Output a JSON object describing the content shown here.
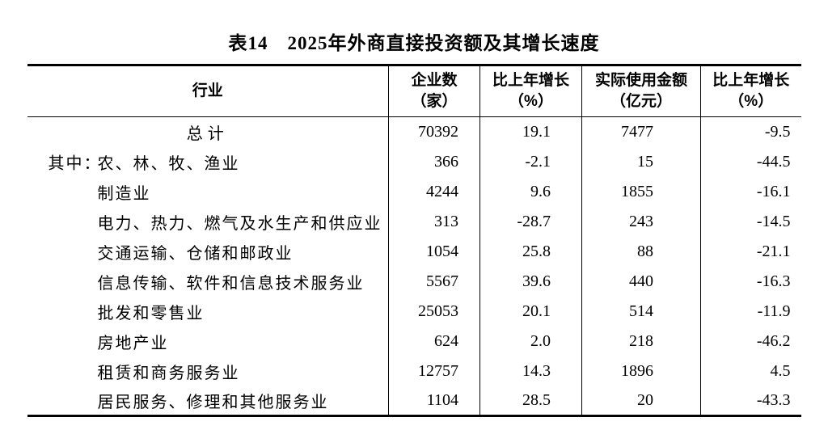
{
  "page": {
    "title": "表14　2025年外商直接投资额及其增长速度"
  },
  "table": {
    "headers": [
      {
        "line1": "行业",
        "line2": ""
      },
      {
        "line1": "企业数",
        "line2": "（家）"
      },
      {
        "line1": "比上年增长",
        "line2": "（%）"
      },
      {
        "line1": "实际使用金额",
        "line2": "（亿元）"
      },
      {
        "line1": "比上年增长",
        "line2": "（%）"
      }
    ],
    "rows": [
      {
        "prefix": "",
        "label": "总计",
        "enterprises": "70392",
        "enterprises_growth": "19.1",
        "amount": "7477",
        "amount_growth": "-9.5"
      },
      {
        "prefix": "其中：",
        "label": "农、林、牧、渔业",
        "enterprises": "366",
        "enterprises_growth": "-2.1",
        "amount": "15",
        "amount_growth": "-44.5"
      },
      {
        "prefix": "",
        "label": "制造业",
        "enterprises": "4244",
        "enterprises_growth": "9.6",
        "amount": "1855",
        "amount_growth": "-16.1"
      },
      {
        "prefix": "",
        "label": "电力、热力、燃气及水生产和供应业",
        "enterprises": "313",
        "enterprises_growth": "-28.7",
        "amount": "243",
        "amount_growth": "-14.5"
      },
      {
        "prefix": "",
        "label": "交通运输、仓储和邮政业",
        "enterprises": "1054",
        "enterprises_growth": "25.8",
        "amount": "88",
        "amount_growth": "-21.1"
      },
      {
        "prefix": "",
        "label": "信息传输、软件和信息技术服务业",
        "enterprises": "5567",
        "enterprises_growth": "39.6",
        "amount": "440",
        "amount_growth": "-16.3"
      },
      {
        "prefix": "",
        "label": "批发和零售业",
        "enterprises": "25053",
        "enterprises_growth": "20.1",
        "amount": "514",
        "amount_growth": "-11.9"
      },
      {
        "prefix": "",
        "label": "房地产业",
        "enterprises": "624",
        "enterprises_growth": "2.0",
        "amount": "218",
        "amount_growth": "-46.2"
      },
      {
        "prefix": "",
        "label": "租赁和商务服务业",
        "enterprises": "12757",
        "enterprises_growth": "14.3",
        "amount": "1896",
        "amount_growth": "4.5"
      },
      {
        "prefix": "",
        "label": "居民服务、修理和其他服务业",
        "enterprises": "1104",
        "enterprises_growth": "28.5",
        "amount": "20",
        "amount_growth": "-43.3"
      }
    ]
  }
}
